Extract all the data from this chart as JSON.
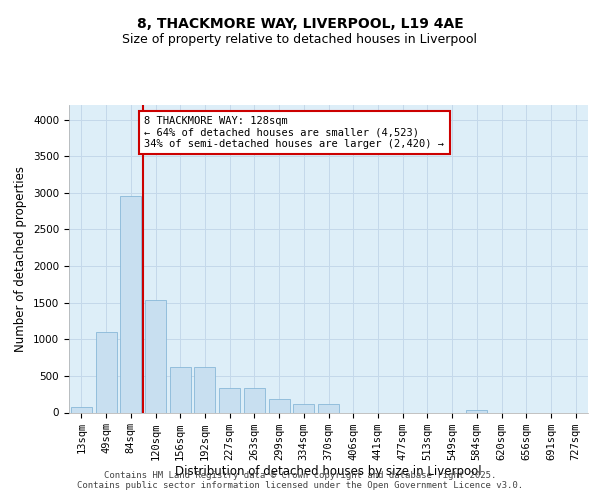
{
  "title_line1": "8, THACKMORE WAY, LIVERPOOL, L19 4AE",
  "title_line2": "Size of property relative to detached houses in Liverpool",
  "xlabel": "Distribution of detached houses by size in Liverpool",
  "ylabel": "Number of detached properties",
  "categories": [
    "13sqm",
    "49sqm",
    "84sqm",
    "120sqm",
    "156sqm",
    "192sqm",
    "227sqm",
    "263sqm",
    "299sqm",
    "334sqm",
    "370sqm",
    "406sqm",
    "441sqm",
    "477sqm",
    "513sqm",
    "549sqm",
    "584sqm",
    "620sqm",
    "656sqm",
    "691sqm",
    "727sqm"
  ],
  "values": [
    70,
    1100,
    2960,
    1540,
    620,
    620,
    330,
    330,
    190,
    120,
    120,
    0,
    0,
    0,
    0,
    0,
    35,
    0,
    0,
    0,
    0
  ],
  "bar_color": "#c8dff0",
  "bar_edge_color": "#89b8d8",
  "vline_color": "#cc0000",
  "vline_position": 2.5,
  "annotation_text": "8 THACKMORE WAY: 128sqm\n← 64% of detached houses are smaller (4,523)\n34% of semi-detached houses are larger (2,420) →",
  "annotation_box_facecolor": "#ffffff",
  "annotation_box_edgecolor": "#cc0000",
  "ylim": [
    0,
    4200
  ],
  "yticks": [
    0,
    500,
    1000,
    1500,
    2000,
    2500,
    3000,
    3500,
    4000
  ],
  "grid_color": "#c4d8ea",
  "background_color": "#ddeef8",
  "title_fontsize": 10,
  "subtitle_fontsize": 9,
  "axis_label_fontsize": 8.5,
  "tick_fontsize": 7.5,
  "annotation_fontsize": 7.5,
  "footer_fontsize": 6.5,
  "footer_line1": "Contains HM Land Registry data © Crown copyright and database right 2025.",
  "footer_line2": "Contains public sector information licensed under the Open Government Licence v3.0."
}
